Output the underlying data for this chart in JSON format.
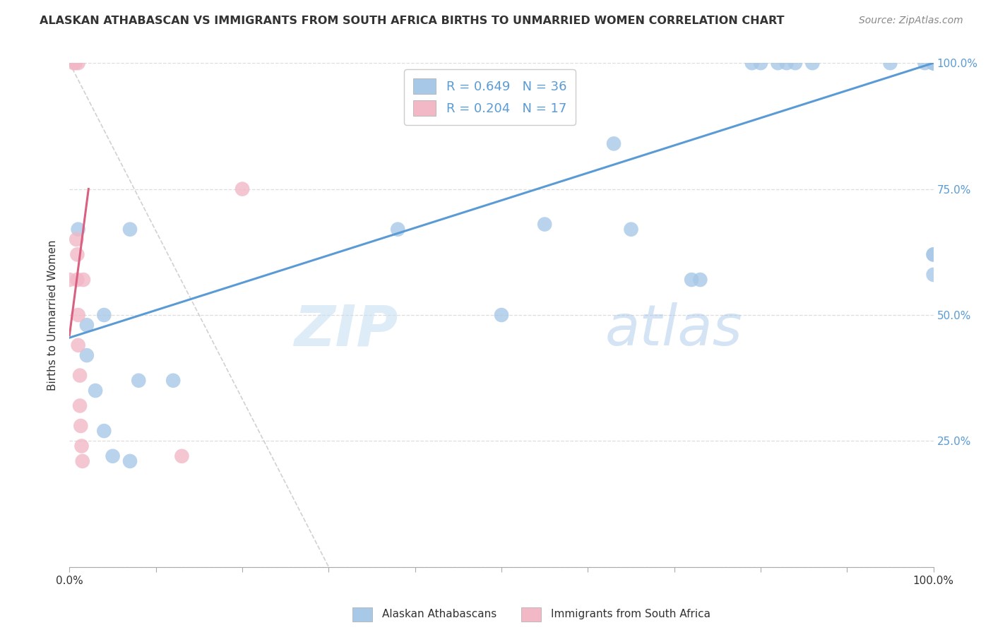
{
  "title": "ALASKAN ATHABASCAN VS IMMIGRANTS FROM SOUTH AFRICA BIRTHS TO UNMARRIED WOMEN CORRELATION CHART",
  "source": "Source: ZipAtlas.com",
  "ylabel": "Births to Unmarried Women",
  "watermark_zip": "ZIP",
  "watermark_atlas": "atlas",
  "blue_R": 0.649,
  "blue_N": 36,
  "pink_R": 0.204,
  "pink_N": 17,
  "blue_color": "#A8C8E8",
  "pink_color": "#F2B8C6",
  "blue_line_color": "#5B9BD5",
  "pink_line_color": "#D96080",
  "diagonal_color": "#CCCCCC",
  "blue_points_x": [
    0.01,
    0.02,
    0.02,
    0.03,
    0.04,
    0.04,
    0.05,
    0.07,
    0.07,
    0.08,
    0.12,
    0.38,
    0.5,
    0.55,
    0.63,
    0.65,
    0.72,
    0.73,
    0.79,
    0.8,
    0.82,
    0.83,
    0.84,
    0.86,
    0.95,
    0.99,
    1.0,
    1.0,
    1.0,
    1.0,
    1.0,
    1.0,
    1.0,
    1.0,
    1.0,
    1.0
  ],
  "blue_points_y": [
    0.67,
    0.48,
    0.42,
    0.35,
    0.5,
    0.27,
    0.22,
    0.67,
    0.21,
    0.37,
    0.37,
    0.67,
    0.5,
    0.68,
    0.84,
    0.67,
    0.57,
    0.57,
    1.0,
    1.0,
    1.0,
    1.0,
    1.0,
    1.0,
    1.0,
    1.0,
    1.0,
    1.0,
    1.0,
    1.0,
    1.0,
    1.0,
    1.0,
    0.62,
    0.58,
    0.62
  ],
  "pink_points_x": [
    0.0,
    0.005,
    0.007,
    0.008,
    0.009,
    0.009,
    0.01,
    0.01,
    0.01,
    0.012,
    0.012,
    0.013,
    0.014,
    0.015,
    0.016,
    0.13,
    0.2
  ],
  "pink_points_y": [
    0.57,
    1.0,
    1.0,
    0.65,
    0.62,
    0.57,
    0.5,
    0.44,
    1.0,
    0.38,
    0.32,
    0.28,
    0.24,
    0.21,
    0.57,
    0.22,
    0.75
  ],
  "blue_line_x0": 0.0,
  "blue_line_y0": 0.455,
  "blue_line_x1": 1.0,
  "blue_line_y1": 1.0,
  "pink_line_x0": 0.0,
  "pink_line_y0": 0.46,
  "pink_line_x1": 0.022,
  "pink_line_y1": 0.75,
  "xlim": [
    0.0,
    1.0
  ],
  "ylim": [
    0.0,
    1.0
  ],
  "xticks": [
    0.0,
    0.1,
    0.2,
    0.3,
    0.4,
    0.5,
    0.6,
    0.7,
    0.8,
    0.9,
    1.0
  ],
  "yticks": [
    0.0,
    0.25,
    0.5,
    0.75,
    1.0
  ],
  "right_ytick_labels": [
    "",
    "25.0%",
    "50.0%",
    "75.0%",
    "100.0%"
  ],
  "grid_color": "#DDDDDD",
  "background_color": "#FFFFFF",
  "legend_label_blue": "Alaskan Athabascans",
  "legend_label_pink": "Immigrants from South Africa"
}
